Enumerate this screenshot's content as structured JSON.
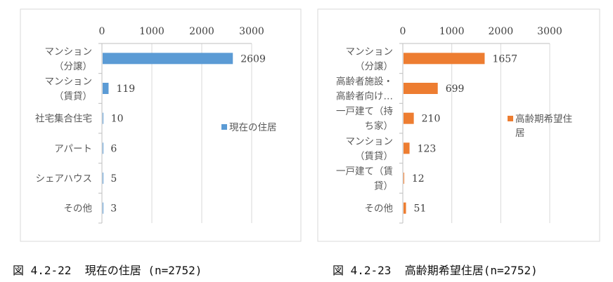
{
  "chart_data": [
    {
      "type": "bar",
      "orientation": "horizontal",
      "title": "",
      "caption": "図 4.2-22  現在の住居 (n=2752)",
      "categories": [
        [
          "マンション",
          "（分譲）"
        ],
        [
          "マンション",
          "（賃貸）"
        ],
        [
          "社宅集合住宅"
        ],
        [
          "アパート"
        ],
        [
          "シェアハウス"
        ],
        [
          "その他"
        ]
      ],
      "series": [
        {
          "name": "現在の住居",
          "values": [
            2609,
            119,
            10,
            6,
            5,
            3
          ],
          "color": "#5B9BD5"
        }
      ],
      "xticks": [
        "0",
        "1000",
        "2000",
        "3000"
      ],
      "xlim": [
        0,
        3000
      ],
      "xlabel": "",
      "ylabel": "",
      "grid": true,
      "legend": "right",
      "legend_lines": [
        "現在の住居"
      ]
    },
    {
      "type": "bar",
      "orientation": "horizontal",
      "title": "",
      "caption": "図 4.2-23  高齢期希望住居(n=2752)",
      "categories": [
        [
          "マンション",
          "（分譲）"
        ],
        [
          "高齢者施設・",
          "高齢者向け…"
        ],
        [
          "一戸建て（持",
          "ち家）"
        ],
        [
          "マンション",
          "（賃貸）"
        ],
        [
          "一戸建て（賃",
          "貸）"
        ],
        [
          "その他"
        ]
      ],
      "series": [
        {
          "name": "高齢期希望住居",
          "values": [
            1657,
            699,
            210,
            123,
            12,
            51
          ],
          "color": "#ED7D31"
        }
      ],
      "xticks": [
        "0",
        "1000",
        "2000",
        "3000"
      ],
      "xlim": [
        0,
        3000
      ],
      "xlabel": "",
      "ylabel": "",
      "grid": true,
      "legend": "right",
      "legend_lines": [
        "高齢期希望住",
        "居"
      ]
    }
  ]
}
